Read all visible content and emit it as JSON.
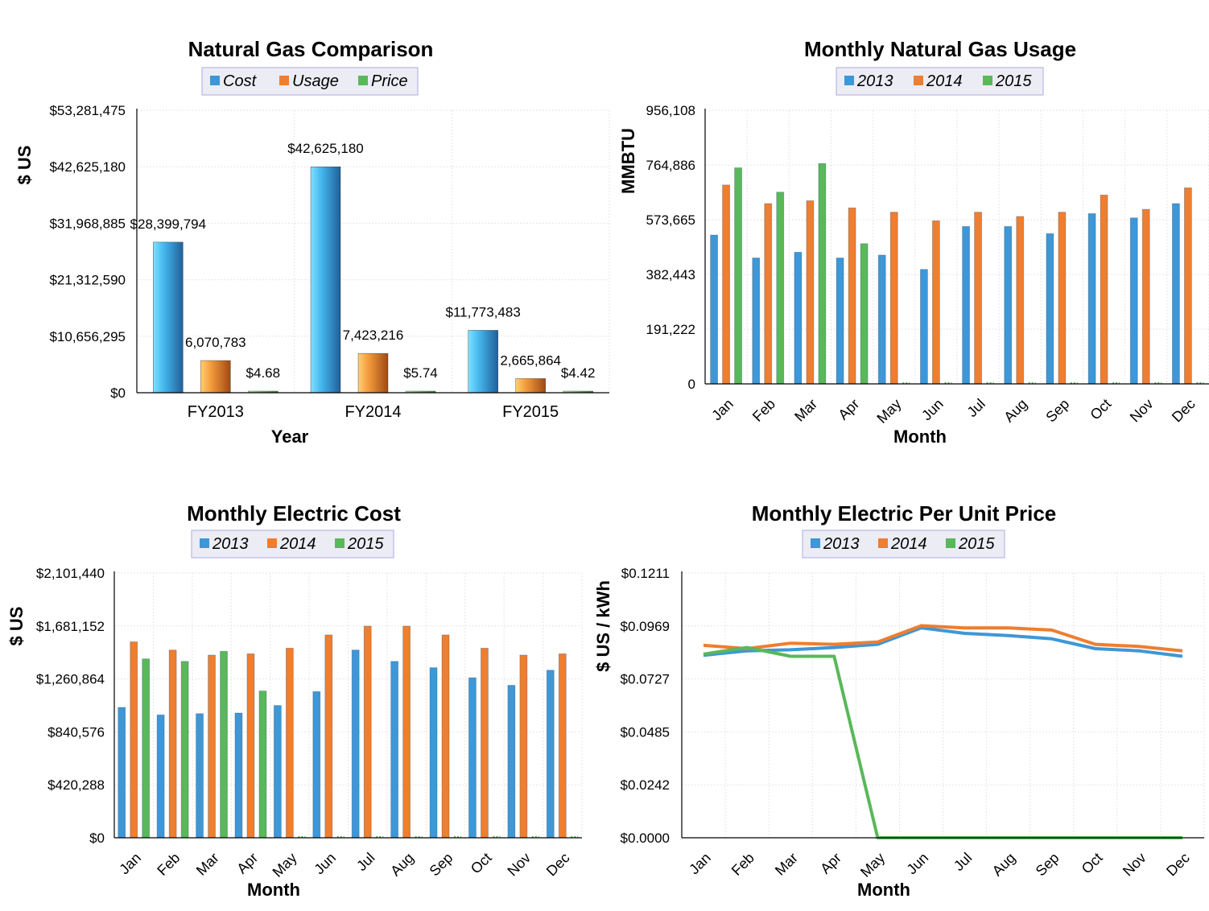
{
  "colors": {
    "s1": "#3e97d6",
    "s2": "#ee7e30",
    "s3": "#59b85a",
    "grid": "#e6e6e6",
    "legend_bg": "#ececf4",
    "legend_border": "#b8b8e8"
  },
  "chart_data": [
    {
      "type": "bar",
      "title": "Natural Gas Comparison",
      "xlabel": "Year",
      "ylabel": "$ US",
      "legend_position": "top",
      "categories": [
        "FY2013",
        "FY2014",
        "FY2015"
      ],
      "series": [
        {
          "name": "Cost",
          "values": [
            28399794,
            42625180,
            11773483
          ],
          "labels": [
            "$28,399,794",
            "$42,625,180",
            "$11,773,483"
          ]
        },
        {
          "name": "Usage",
          "values": [
            6070783,
            7423216,
            2665864
          ],
          "labels": [
            "6,070,783",
            "7,423,216",
            "2,665,864"
          ]
        },
        {
          "name": "Price",
          "values": [
            4.68,
            5.74,
            4.42
          ],
          "labels": [
            "$4.68",
            "$5.74",
            "$4.42"
          ]
        }
      ],
      "ylim": [
        0,
        53281475
      ],
      "yticks": [
        "$0",
        "$10,656,295",
        "$21,312,590",
        "$31,968,885",
        "$42,625,180",
        "$53,281,475"
      ],
      "grid": true
    },
    {
      "type": "bar",
      "title": "Monthly Natural Gas Usage",
      "xlabel": "Month",
      "ylabel": "MMBTU",
      "legend_position": "top",
      "categories": [
        "Jan",
        "Feb",
        "Mar",
        "Apr",
        "May",
        "Jun",
        "Jul",
        "Aug",
        "Sep",
        "Oct",
        "Nov",
        "Dec"
      ],
      "series": [
        {
          "name": "2013",
          "values": [
            520000,
            440000,
            460000,
            440000,
            450000,
            400000,
            550000,
            550000,
            525000,
            595000,
            580000,
            630000
          ]
        },
        {
          "name": "2014",
          "values": [
            695000,
            630000,
            640000,
            615000,
            600000,
            570000,
            600000,
            585000,
            600000,
            660000,
            610000,
            685000
          ]
        },
        {
          "name": "2015",
          "values": [
            755000,
            670000,
            770000,
            490000,
            0,
            0,
            0,
            0,
            0,
            0,
            0,
            0
          ]
        }
      ],
      "ylim": [
        0,
        956108
      ],
      "yticks": [
        "0",
        "191,222",
        "382,443",
        "573,665",
        "764,886",
        "956,108"
      ],
      "grid": true
    },
    {
      "type": "bar",
      "title": "Monthly Electric Cost",
      "xlabel": "Month",
      "ylabel": "$ US",
      "legend_position": "top",
      "categories": [
        "Jan",
        "Feb",
        "Mar",
        "Apr",
        "May",
        "Jun",
        "Jul",
        "Aug",
        "Sep",
        "Oct",
        "Nov",
        "Dec"
      ],
      "series": [
        {
          "name": "2013",
          "values": [
            1035000,
            975000,
            985000,
            990000,
            1050000,
            1160000,
            1490000,
            1400000,
            1350000,
            1270000,
            1210000,
            1330000
          ]
        },
        {
          "name": "2014",
          "values": [
            1555000,
            1490000,
            1450000,
            1460000,
            1505000,
            1610000,
            1680000,
            1680000,
            1610000,
            1505000,
            1450000,
            1460000
          ]
        },
        {
          "name": "2015",
          "values": [
            1420000,
            1400000,
            1480000,
            1165000,
            0,
            0,
            0,
            0,
            0,
            0,
            0,
            0
          ]
        }
      ],
      "ylim": [
        0,
        2101440
      ],
      "yticks": [
        "$0",
        "$420,288",
        "$840,576",
        "$1,260,864",
        "$1,681,152",
        "$2,101,440"
      ],
      "grid": true
    },
    {
      "type": "line",
      "title": "Monthly Electric Per Unit Price",
      "xlabel": "Month",
      "ylabel": "$ US / kWh",
      "legend_position": "top",
      "categories": [
        "Jan",
        "Feb",
        "Mar",
        "Apr",
        "May",
        "Jun",
        "Jul",
        "Aug",
        "Sep",
        "Oct",
        "Nov",
        "Dec"
      ],
      "series": [
        {
          "name": "2013",
          "values": [
            0.0835,
            0.0855,
            0.086,
            0.087,
            0.0885,
            0.096,
            0.0935,
            0.0925,
            0.091,
            0.0865,
            0.0855,
            0.083
          ]
        },
        {
          "name": "2014",
          "values": [
            0.088,
            0.0865,
            0.089,
            0.0885,
            0.0895,
            0.097,
            0.096,
            0.096,
            0.095,
            0.0885,
            0.0875,
            0.0855
          ]
        },
        {
          "name": "2015",
          "values": [
            0.084,
            0.087,
            0.083,
            0.083,
            0.0,
            0.0,
            0.0,
            0.0,
            0.0,
            0.0,
            0.0,
            0.0
          ]
        }
      ],
      "ylim": [
        0,
        0.1211
      ],
      "yticks": [
        "$0.0000",
        "$0.0242",
        "$0.0485",
        "$0.0727",
        "$0.0969",
        "$0.1211"
      ],
      "grid": true
    }
  ]
}
